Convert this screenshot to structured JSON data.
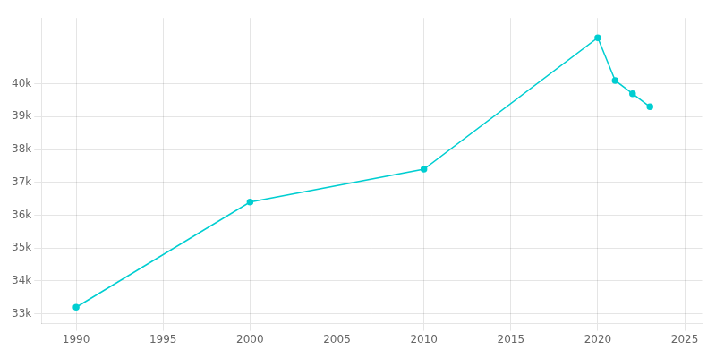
{
  "chart_data": {
    "type": "line",
    "x": [
      1990,
      2000,
      2010,
      2020,
      2021,
      2022,
      2023
    ],
    "values": [
      33200,
      36400,
      37400,
      41400,
      40100,
      39700,
      39300
    ],
    "color": "#00CED1",
    "marker": "circle",
    "xlim": [
      1988,
      2026
    ],
    "xticks": [
      1990,
      1995,
      2000,
      2005,
      2010,
      2015,
      2020,
      2025
    ],
    "ylim": [
      32700,
      42000
    ],
    "yticks": [
      {
        "value": 33000,
        "label": "33k"
      },
      {
        "value": 34000,
        "label": "34k"
      },
      {
        "value": 35000,
        "label": "35k"
      },
      {
        "value": 36000,
        "label": "36k"
      },
      {
        "value": 37000,
        "label": "37k"
      },
      {
        "value": 38000,
        "label": "38k"
      },
      {
        "value": 39000,
        "label": "39k"
      },
      {
        "value": 40000,
        "label": "40k"
      }
    ],
    "grid": true
  }
}
